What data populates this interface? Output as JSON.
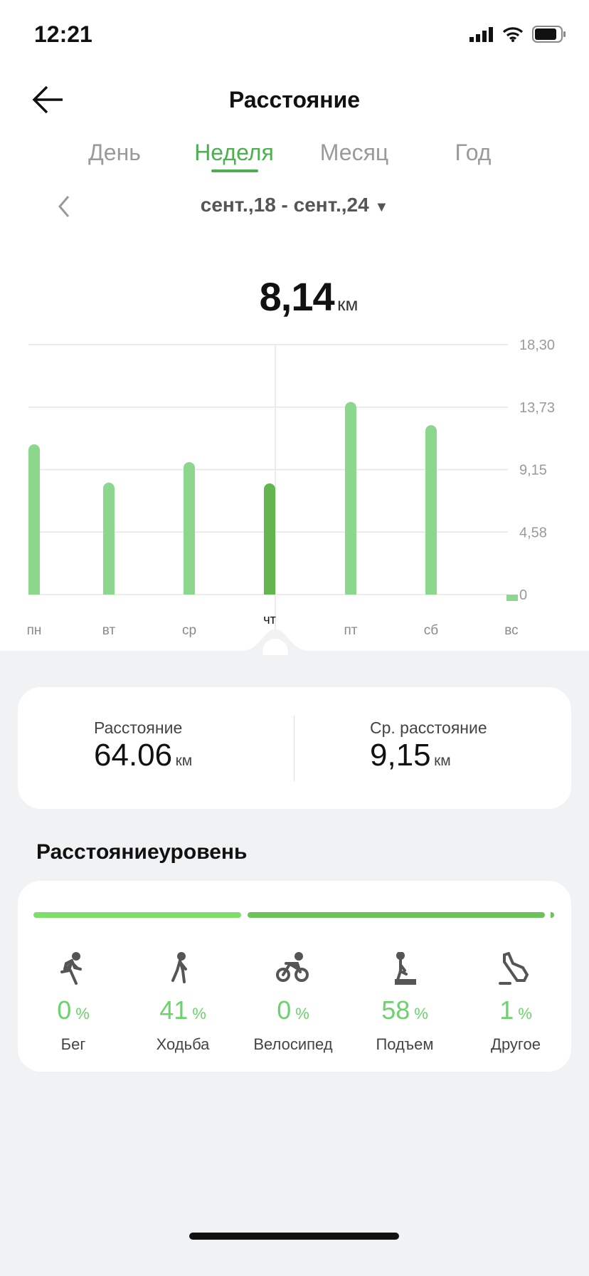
{
  "status_bar": {
    "time": "12:21"
  },
  "header": {
    "title": "Расстояние"
  },
  "tabs": [
    {
      "label": "День"
    },
    {
      "label": "Неделя",
      "active": true
    },
    {
      "label": "Месяц"
    },
    {
      "label": "Год"
    }
  ],
  "date_range": "сент.,18 - сент.,24",
  "selected": {
    "value": "8,14",
    "unit": "км"
  },
  "chart_data": {
    "type": "bar",
    "categories": [
      "пн",
      "вт",
      "ср",
      "чт",
      "пт",
      "сб",
      "вс"
    ],
    "values": [
      11.0,
      8.2,
      9.7,
      8.14,
      14.1,
      12.4,
      0.3
    ],
    "selected_category": "чт",
    "y_ticks": [
      "0",
      "4,58",
      "9,15",
      "13,73",
      "18,30"
    ],
    "ylim": [
      0,
      18.3
    ],
    "grid": true,
    "colors": {
      "bar": "#8dd68d",
      "selected": "#63b64f"
    }
  },
  "summary": {
    "total": {
      "label": "Расстояние",
      "value": "64.06",
      "unit": "км"
    },
    "average": {
      "label": "Ср. расстояние",
      "value": "9,15",
      "unit": "км"
    }
  },
  "level": {
    "title": "Расстояниеуровень",
    "categories": [
      {
        "label": "Бег",
        "percent": "0",
        "icon": "running-icon"
      },
      {
        "label": "Ходьба",
        "percent": "41",
        "icon": "walking-icon"
      },
      {
        "label": "Велосипед",
        "percent": "0",
        "icon": "cycling-icon"
      },
      {
        "label": "Подъем",
        "percent": "58",
        "icon": "climbing-icon"
      },
      {
        "label": "Другое",
        "percent": "1",
        "icon": "shoe-icon"
      }
    ],
    "percent_sign": "%"
  }
}
